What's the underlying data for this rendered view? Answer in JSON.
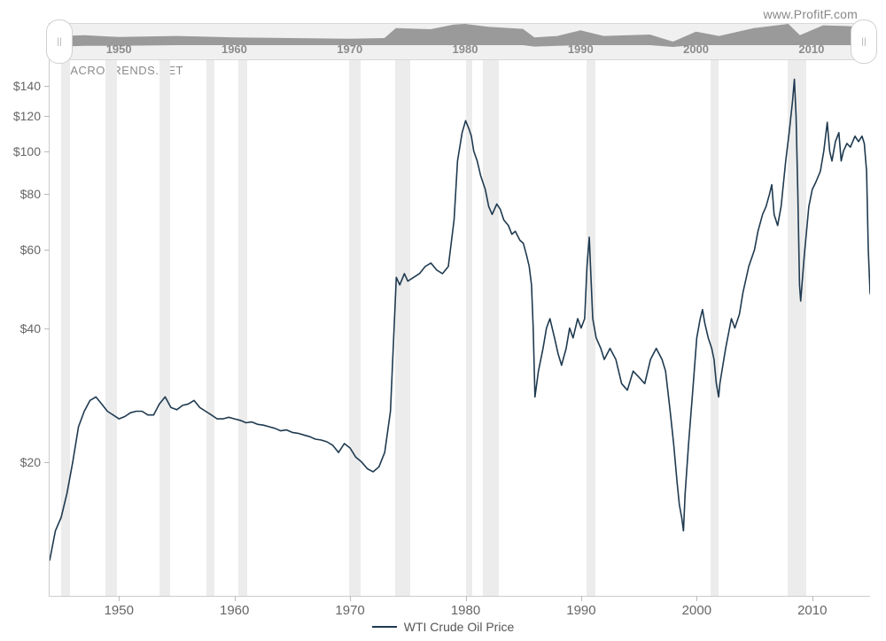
{
  "watermark": "www.ProfitF.com",
  "source_label": "MACROTRENDS.NET",
  "legend": {
    "label": "WTI Crude Oil Price",
    "color": "#1f3a50"
  },
  "colors": {
    "line": "#1f3a50",
    "recession_band": "#ececec",
    "axis": "#cccccc",
    "tick_text": "#666666",
    "overview_bg": "#f0f0f0",
    "overview_fill": "#9a9a9a",
    "background": "#ffffff"
  },
  "chart": {
    "type": "line",
    "y_scale": "log",
    "y_ticks": [
      20,
      40,
      60,
      80,
      100,
      120,
      140
    ],
    "y_tick_prefix": "$",
    "y_min": 10,
    "y_max": 160,
    "x_min": 1944,
    "x_max": 2015,
    "x_ticks": [
      1950,
      1960,
      1970,
      1980,
      1990,
      2000,
      2010
    ],
    "line_width": 1.6,
    "series": [
      [
        1944,
        12
      ],
      [
        1944.5,
        14
      ],
      [
        1945,
        15
      ],
      [
        1945.5,
        17
      ],
      [
        1946,
        20
      ],
      [
        1946.5,
        24
      ],
      [
        1947,
        26
      ],
      [
        1947.5,
        27.5
      ],
      [
        1948,
        28
      ],
      [
        1948.5,
        27
      ],
      [
        1949,
        26
      ],
      [
        1949.5,
        25.5
      ],
      [
        1950,
        25
      ],
      [
        1950.5,
        25.3
      ],
      [
        1951,
        25.8
      ],
      [
        1951.5,
        26
      ],
      [
        1952,
        26
      ],
      [
        1952.5,
        25.5
      ],
      [
        1953,
        25.5
      ],
      [
        1953.5,
        27
      ],
      [
        1954,
        28
      ],
      [
        1954.5,
        26.5
      ],
      [
        1955,
        26.2
      ],
      [
        1955.5,
        26.8
      ],
      [
        1956,
        27
      ],
      [
        1956.5,
        27.5
      ],
      [
        1957,
        26.5
      ],
      [
        1957.5,
        26
      ],
      [
        1958,
        25.5
      ],
      [
        1958.5,
        25
      ],
      [
        1959,
        25
      ],
      [
        1959.5,
        25.2
      ],
      [
        1960,
        25
      ],
      [
        1960.5,
        24.8
      ],
      [
        1961,
        24.5
      ],
      [
        1961.5,
        24.6
      ],
      [
        1962,
        24.3
      ],
      [
        1962.5,
        24.2
      ],
      [
        1963,
        24
      ],
      [
        1963.5,
        23.8
      ],
      [
        1964,
        23.5
      ],
      [
        1964.5,
        23.6
      ],
      [
        1965,
        23.3
      ],
      [
        1965.5,
        23.2
      ],
      [
        1966,
        23
      ],
      [
        1966.5,
        22.8
      ],
      [
        1967,
        22.5
      ],
      [
        1967.5,
        22.4
      ],
      [
        1968,
        22.2
      ],
      [
        1968.5,
        21.8
      ],
      [
        1969,
        21
      ],
      [
        1969.5,
        22
      ],
      [
        1970,
        21.5
      ],
      [
        1970.5,
        20.5
      ],
      [
        1971,
        20
      ],
      [
        1971.5,
        19.3
      ],
      [
        1972,
        19
      ],
      [
        1972.5,
        19.5
      ],
      [
        1973,
        21
      ],
      [
        1973.5,
        26
      ],
      [
        1974,
        52
      ],
      [
        1974.3,
        50
      ],
      [
        1974.7,
        53
      ],
      [
        1975,
        51
      ],
      [
        1975.5,
        52
      ],
      [
        1976,
        53
      ],
      [
        1976.5,
        55
      ],
      [
        1977,
        56
      ],
      [
        1977.5,
        54
      ],
      [
        1978,
        53
      ],
      [
        1978.5,
        55
      ],
      [
        1979,
        70
      ],
      [
        1979.3,
        95
      ],
      [
        1979.7,
        110
      ],
      [
        1980,
        117
      ],
      [
        1980.3,
        112
      ],
      [
        1980.5,
        108
      ],
      [
        1980.7,
        100
      ],
      [
        1981,
        95
      ],
      [
        1981.3,
        88
      ],
      [
        1981.7,
        82
      ],
      [
        1982,
        75
      ],
      [
        1982.3,
        72
      ],
      [
        1982.7,
        76
      ],
      [
        1983,
        74
      ],
      [
        1983.3,
        70
      ],
      [
        1983.7,
        68
      ],
      [
        1984,
        65
      ],
      [
        1984.3,
        66
      ],
      [
        1984.7,
        63
      ],
      [
        1985,
        62
      ],
      [
        1985.3,
        58
      ],
      [
        1985.5,
        55
      ],
      [
        1985.7,
        50
      ],
      [
        1985.85,
        40
      ],
      [
        1986,
        28
      ],
      [
        1986.3,
        32
      ],
      [
        1986.7,
        36
      ],
      [
        1987,
        40
      ],
      [
        1987.3,
        42
      ],
      [
        1987.7,
        38
      ],
      [
        1988,
        35
      ],
      [
        1988.3,
        33
      ],
      [
        1988.7,
        36
      ],
      [
        1989,
        40
      ],
      [
        1989.3,
        38
      ],
      [
        1989.7,
        42
      ],
      [
        1990,
        40
      ],
      [
        1990.3,
        42
      ],
      [
        1990.5,
        55
      ],
      [
        1990.7,
        64
      ],
      [
        1990.85,
        52
      ],
      [
        1991,
        42
      ],
      [
        1991.3,
        38
      ],
      [
        1991.7,
        36
      ],
      [
        1992,
        34
      ],
      [
        1992.5,
        36
      ],
      [
        1993,
        34
      ],
      [
        1993.5,
        30
      ],
      [
        1994,
        29
      ],
      [
        1994.5,
        32
      ],
      [
        1995,
        31
      ],
      [
        1995.5,
        30
      ],
      [
        1996,
        34
      ],
      [
        1996.5,
        36
      ],
      [
        1997,
        34
      ],
      [
        1997.3,
        32
      ],
      [
        1997.7,
        26
      ],
      [
        1998,
        22
      ],
      [
        1998.3,
        18
      ],
      [
        1998.5,
        16
      ],
      [
        1998.7,
        15
      ],
      [
        1998.85,
        14
      ],
      [
        1999,
        17
      ],
      [
        1999.3,
        22
      ],
      [
        1999.7,
        30
      ],
      [
        2000,
        38
      ],
      [
        2000.3,
        42
      ],
      [
        2000.5,
        44
      ],
      [
        2000.7,
        41
      ],
      [
        2001,
        38
      ],
      [
        2001.3,
        36
      ],
      [
        2001.5,
        34
      ],
      [
        2001.7,
        30
      ],
      [
        2001.9,
        28
      ],
      [
        2002,
        30
      ],
      [
        2002.5,
        36
      ],
      [
        2003,
        42
      ],
      [
        2003.3,
        40
      ],
      [
        2003.7,
        43
      ],
      [
        2004,
        48
      ],
      [
        2004.5,
        55
      ],
      [
        2005,
        60
      ],
      [
        2005.3,
        66
      ],
      [
        2005.7,
        72
      ],
      [
        2006,
        75
      ],
      [
        2006.3,
        80
      ],
      [
        2006.5,
        84
      ],
      [
        2006.7,
        72
      ],
      [
        2007,
        68
      ],
      [
        2007.3,
        75
      ],
      [
        2007.7,
        95
      ],
      [
        2008,
        110
      ],
      [
        2008.3,
        130
      ],
      [
        2008.45,
        145
      ],
      [
        2008.6,
        120
      ],
      [
        2008.75,
        80
      ],
      [
        2008.9,
        50
      ],
      [
        2009,
        46
      ],
      [
        2009.3,
        58
      ],
      [
        2009.7,
        75
      ],
      [
        2010,
        82
      ],
      [
        2010.3,
        85
      ],
      [
        2010.7,
        90
      ],
      [
        2011,
        100
      ],
      [
        2011.3,
        116
      ],
      [
        2011.5,
        100
      ],
      [
        2011.7,
        95
      ],
      [
        2012,
        105
      ],
      [
        2012.3,
        110
      ],
      [
        2012.5,
        95
      ],
      [
        2012.7,
        100
      ],
      [
        2013,
        104
      ],
      [
        2013.3,
        102
      ],
      [
        2013.7,
        108
      ],
      [
        2014,
        105
      ],
      [
        2014.3,
        108
      ],
      [
        2014.5,
        104
      ],
      [
        2014.7,
        90
      ],
      [
        2014.85,
        60
      ],
      [
        2015,
        48
      ],
      [
        2015.2,
        46
      ]
    ],
    "recession_bands": [
      [
        1945,
        1945.8
      ],
      [
        1948.8,
        1949.8
      ],
      [
        1953.5,
        1954.4
      ],
      [
        1957.6,
        1958.3
      ],
      [
        1960.3,
        1961.1
      ],
      [
        1969.9,
        1970.9
      ],
      [
        1973.9,
        1975.2
      ],
      [
        1980,
        1980.6
      ],
      [
        1981.5,
        1982.9
      ],
      [
        1990.5,
        1991.2
      ],
      [
        2001.2,
        2001.9
      ],
      [
        2007.9,
        2009.5
      ]
    ]
  },
  "overview": {
    "decade_labels": [
      1950,
      1960,
      1970,
      1980,
      1990,
      2000,
      2010
    ],
    "x_min": 1944,
    "x_max": 2015,
    "upper_profile": [
      [
        1944,
        0.65
      ],
      [
        1947,
        0.68
      ],
      [
        1950,
        0.63
      ],
      [
        1955,
        0.66
      ],
      [
        1960,
        0.62
      ],
      [
        1965,
        0.6
      ],
      [
        1970,
        0.58
      ],
      [
        1973,
        0.6
      ],
      [
        1974,
        0.88
      ],
      [
        1977,
        0.85
      ],
      [
        1979,
        0.98
      ],
      [
        1980,
        1.0
      ],
      [
        1982,
        0.92
      ],
      [
        1985,
        0.86
      ],
      [
        1986,
        0.62
      ],
      [
        1988,
        0.66
      ],
      [
        1990,
        0.82
      ],
      [
        1992,
        0.66
      ],
      [
        1996,
        0.7
      ],
      [
        1998,
        0.5
      ],
      [
        2000,
        0.78
      ],
      [
        2002,
        0.66
      ],
      [
        2005,
        0.88
      ],
      [
        2008,
        1.0
      ],
      [
        2009,
        0.68
      ],
      [
        2011,
        0.96
      ],
      [
        2013,
        0.94
      ],
      [
        2014,
        0.92
      ],
      [
        2015,
        0.7
      ]
    ],
    "lower_profile": [
      [
        1944,
        0.35
      ],
      [
        1947,
        0.38
      ],
      [
        1950,
        0.38
      ],
      [
        1955,
        0.4
      ],
      [
        1960,
        0.4
      ],
      [
        1965,
        0.4
      ],
      [
        1970,
        0.4
      ],
      [
        1973,
        0.4
      ],
      [
        1974,
        0.4
      ],
      [
        1977,
        0.4
      ],
      [
        1979,
        0.4
      ],
      [
        1980,
        0.4
      ],
      [
        1982,
        0.4
      ],
      [
        1985,
        0.4
      ],
      [
        1986,
        0.36
      ],
      [
        1988,
        0.38
      ],
      [
        1990,
        0.4
      ],
      [
        1992,
        0.4
      ],
      [
        1996,
        0.4
      ],
      [
        1998,
        0.35
      ],
      [
        2000,
        0.4
      ],
      [
        2002,
        0.4
      ],
      [
        2005,
        0.4
      ],
      [
        2008,
        0.4
      ],
      [
        2009,
        0.4
      ],
      [
        2011,
        0.4
      ],
      [
        2013,
        0.4
      ],
      [
        2014,
        0.4
      ],
      [
        2015,
        0.4
      ]
    ]
  }
}
